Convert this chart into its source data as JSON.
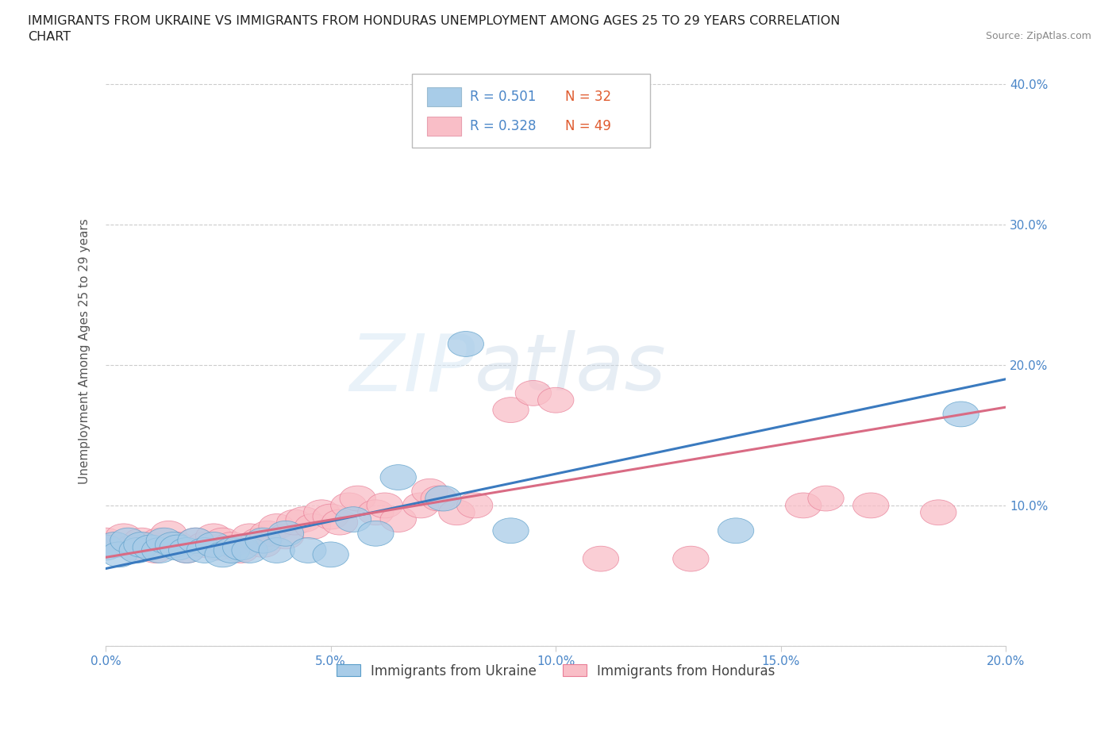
{
  "title_line1": "IMMIGRANTS FROM UKRAINE VS IMMIGRANTS FROM HONDURAS UNEMPLOYMENT AMONG AGES 25 TO 29 YEARS CORRELATION",
  "title_line2": "CHART",
  "source_text": "Source: ZipAtlas.com",
  "ylabel": "Unemployment Among Ages 25 to 29 years",
  "xlim": [
    0.0,
    0.2
  ],
  "ylim": [
    0.0,
    0.42
  ],
  "xticks": [
    0.0,
    0.05,
    0.1,
    0.15,
    0.2
  ],
  "xticklabels": [
    "0.0%",
    "5.0%",
    "10.0%",
    "15.0%",
    "20.0%"
  ],
  "yticks": [
    0.0,
    0.1,
    0.2,
    0.3,
    0.4
  ],
  "yticklabels": [
    "",
    "10.0%",
    "20.0%",
    "30.0%",
    "40.0%"
  ],
  "ukraine_color": "#a8cce8",
  "ukraine_edge_color": "#5b9ec9",
  "honduras_color": "#f9bec7",
  "honduras_edge_color": "#e87d96",
  "ukraine_line_color": "#3a7abf",
  "honduras_line_color": "#d96b84",
  "ukraine_R": "0.501",
  "ukraine_N": "32",
  "honduras_R": "0.328",
  "honduras_N": "49",
  "ukraine_scatter_x": [
    0.0,
    0.002,
    0.003,
    0.005,
    0.007,
    0.008,
    0.01,
    0.012,
    0.013,
    0.015,
    0.016,
    0.018,
    0.02,
    0.022,
    0.024,
    0.026,
    0.028,
    0.03,
    0.032,
    0.035,
    0.038,
    0.04,
    0.045,
    0.05,
    0.055,
    0.06,
    0.065,
    0.075,
    0.08,
    0.09,
    0.14,
    0.19
  ],
  "ukraine_scatter_y": [
    0.07,
    0.072,
    0.065,
    0.075,
    0.068,
    0.072,
    0.07,
    0.068,
    0.075,
    0.072,
    0.07,
    0.068,
    0.075,
    0.068,
    0.072,
    0.065,
    0.068,
    0.07,
    0.068,
    0.075,
    0.068,
    0.08,
    0.068,
    0.065,
    0.09,
    0.08,
    0.12,
    0.105,
    0.215,
    0.082,
    0.082,
    0.165
  ],
  "honduras_scatter_x": [
    0.0,
    0.002,
    0.004,
    0.006,
    0.008,
    0.01,
    0.011,
    0.012,
    0.014,
    0.016,
    0.018,
    0.02,
    0.022,
    0.024,
    0.025,
    0.026,
    0.028,
    0.03,
    0.032,
    0.034,
    0.035,
    0.036,
    0.038,
    0.04,
    0.042,
    0.044,
    0.046,
    0.048,
    0.05,
    0.052,
    0.054,
    0.056,
    0.06,
    0.062,
    0.065,
    0.07,
    0.072,
    0.074,
    0.078,
    0.082,
    0.09,
    0.095,
    0.1,
    0.11,
    0.13,
    0.155,
    0.16,
    0.17,
    0.185
  ],
  "honduras_scatter_y": [
    0.075,
    0.072,
    0.078,
    0.07,
    0.075,
    0.072,
    0.068,
    0.075,
    0.08,
    0.072,
    0.068,
    0.075,
    0.072,
    0.078,
    0.07,
    0.075,
    0.072,
    0.068,
    0.078,
    0.075,
    0.072,
    0.08,
    0.085,
    0.078,
    0.088,
    0.09,
    0.085,
    0.095,
    0.092,
    0.088,
    0.1,
    0.105,
    0.095,
    0.1,
    0.09,
    0.1,
    0.11,
    0.105,
    0.095,
    0.1,
    0.168,
    0.18,
    0.175,
    0.062,
    0.062,
    0.1,
    0.105,
    0.1,
    0.095
  ],
  "ukraine_line_x": [
    0.0,
    0.2
  ],
  "ukraine_line_y": [
    0.055,
    0.19
  ],
  "honduras_line_x": [
    0.0,
    0.2
  ],
  "honduras_line_y": [
    0.063,
    0.17
  ],
  "watermark_zip": "ZIP",
  "watermark_atlas": "atlas",
  "background_color": "#ffffff",
  "grid_color": "#cccccc",
  "title_color": "#222222",
  "tick_color": "#4a86c8",
  "legend_R_color": "#4a86c8",
  "legend_N_color": "#e05c30"
}
